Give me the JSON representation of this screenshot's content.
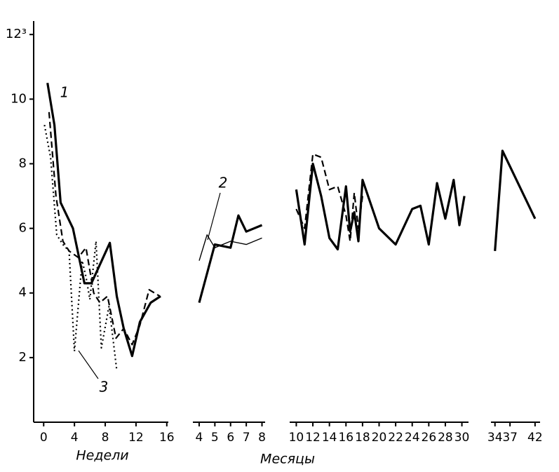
{
  "chart_data": [
    {
      "type": "line",
      "xlabel": "Недели",
      "annotations": [
        "1",
        "3"
      ],
      "xlim": [
        -1.3,
        16.2
      ],
      "xticks": [
        0,
        4,
        8,
        12,
        16
      ],
      "ylim": [
        0,
        12.2
      ],
      "yticks": [
        2,
        4,
        6,
        8,
        10,
        {
          "value": 12,
          "label": "12³"
        }
      ],
      "series": [
        {
          "style": "solid",
          "color": "#000",
          "x": [
            0.5,
            1.4,
            2.2,
            3.8,
            5.3,
            6.2,
            8.6,
            9.5,
            10.4,
            11.5,
            12.5,
            13.9,
            15.2
          ],
          "values": [
            10.5,
            9.2,
            6.8,
            6.0,
            4.3,
            4.3,
            5.55,
            3.9,
            2.9,
            2.05,
            3.1,
            3.7,
            3.9
          ]
        },
        {
          "style": "dashed",
          "color": "#000",
          "x": [
            0.7,
            1.6,
            2.5,
            3.3,
            4.5,
            5.5,
            6.5,
            7.3,
            8.3,
            9.4,
            10.4,
            11.5,
            12.5,
            13.7,
            15.1
          ],
          "values": [
            9.6,
            7.0,
            5.6,
            5.3,
            5.1,
            5.4,
            4.0,
            3.7,
            3.9,
            2.6,
            2.9,
            2.4,
            3.0,
            4.1,
            3.9
          ]
        },
        {
          "style": "dotted",
          "color": "#000",
          "x": [
            0.1,
            0.9,
            1.7,
            2.5,
            3.3,
            4.0,
            5.0,
            5.5,
            6.0,
            6.8,
            7.5,
            8.5,
            9.5
          ],
          "values": [
            9.2,
            8.2,
            5.8,
            5.5,
            5.3,
            2.2,
            5.0,
            4.5,
            3.8,
            5.6,
            2.3,
            3.6,
            1.6
          ]
        }
      ]
    },
    {
      "type": "line",
      "annotations": [
        "2"
      ],
      "xlim": [
        3.6,
        8.2
      ],
      "xticks": [
        4,
        5,
        6,
        7,
        8
      ],
      "series": [
        {
          "style": "solid",
          "color": "#000",
          "x": [
            4,
            5,
            6,
            6.5,
            7,
            8
          ],
          "values": [
            3.7,
            5.5,
            5.4,
            6.4,
            5.9,
            6.1
          ]
        },
        {
          "style": "thin",
          "color": "#000",
          "x": [
            4,
            4.5,
            5,
            6,
            7,
            8
          ],
          "values": [
            5.0,
            5.8,
            5.4,
            5.6,
            5.5,
            5.7
          ]
        }
      ]
    },
    {
      "type": "line",
      "xlabel": "Месяцы",
      "xlim": [
        9.2,
        30.8
      ],
      "xticks": [
        10,
        12,
        14,
        16,
        18,
        20,
        22,
        24,
        26,
        28,
        30
      ],
      "series": [
        {
          "style": "solid",
          "color": "#000",
          "x": [
            10,
            11,
            12,
            13,
            14,
            15,
            16,
            16.5,
            17,
            17.5,
            18,
            20,
            22,
            24,
            25,
            26,
            27,
            28,
            29,
            29.7,
            30.3
          ],
          "values": [
            7.2,
            5.5,
            8.0,
            7.0,
            5.7,
            5.35,
            7.3,
            5.9,
            6.5,
            5.6,
            7.5,
            6.0,
            5.5,
            6.6,
            6.7,
            5.5,
            7.4,
            6.3,
            7.5,
            6.1,
            7.0
          ]
        },
        {
          "style": "dashed",
          "color": "#000",
          "x": [
            10,
            11,
            12,
            13,
            14,
            15,
            16,
            16.5,
            17,
            17.5,
            18
          ],
          "values": [
            6.6,
            6.0,
            8.3,
            8.2,
            7.2,
            7.3,
            6.4,
            5.6,
            7.1,
            6.0,
            7.0
          ]
        }
      ]
    },
    {
      "type": "line",
      "xlim": [
        33.2,
        43.0
      ],
      "xticks": [
        34,
        37,
        42
      ],
      "series": [
        {
          "style": "solid",
          "color": "#000",
          "x": [
            34,
            35.5,
            42
          ],
          "values": [
            5.3,
            8.4,
            6.3
          ]
        }
      ]
    }
  ]
}
